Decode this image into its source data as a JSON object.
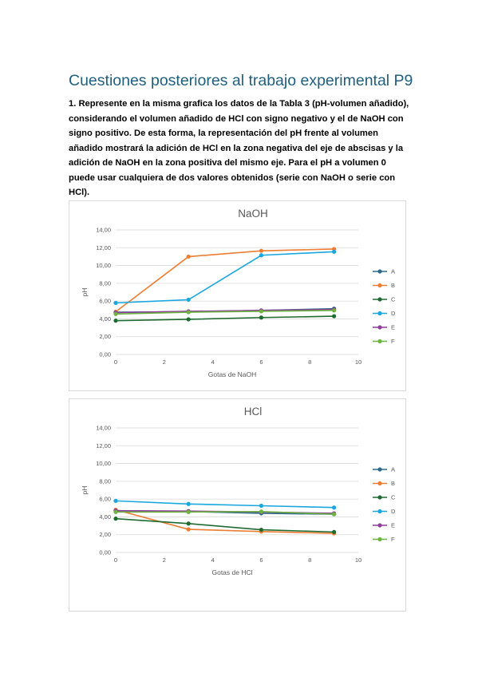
{
  "page": {
    "title": "Cuestiones posteriores al trabajo experimental P9",
    "question": "1. Represente en la misma grafica los datos de la Tabla 3 (pH-volumen añadido), considerando el volumen añadido de HCl con signo negativo y el de NaOH con signo positivo. De esta forma, la representación del pH frente al volumen añadido mostrará la adición de HCl en la zona negativa del eje de abscisas y la adición de NaOH en la zona positiva del mismo eje. Para el pH a volumen 0 puede usar cualquiera de dos valores obtenidos (serie con NaOH o serie con HCl)."
  },
  "chart_data": [
    {
      "type": "line",
      "title": "NaOH",
      "xlabel": "Gotas de NaOH",
      "ylabel": "pH",
      "xlim": [
        0,
        10
      ],
      "ylim": [
        0,
        14
      ],
      "xticks": [
        "0",
        "2",
        "4",
        "6",
        "8",
        "10"
      ],
      "yticks": [
        "0,00",
        "2,00",
        "4,00",
        "6,00",
        "8,00",
        "10,00",
        "12,00",
        "14,00"
      ],
      "grid": true,
      "legend_position": "right",
      "x": [
        0,
        3,
        6,
        9
      ],
      "series": [
        {
          "name": "A",
          "color": "#2e6b8a",
          "values": [
            4.75,
            4.8,
            4.95,
            5.15
          ]
        },
        {
          "name": "B",
          "color": "#ed7d31",
          "values": [
            4.8,
            11.0,
            11.65,
            11.85
          ]
        },
        {
          "name": "C",
          "color": "#1e6b30",
          "values": [
            3.8,
            3.95,
            4.15,
            4.3
          ]
        },
        {
          "name": "D",
          "color": "#1aa7e0",
          "values": [
            5.8,
            6.15,
            11.15,
            11.55
          ]
        },
        {
          "name": "E",
          "color": "#8e3d9b",
          "values": [
            4.7,
            4.85,
            4.95,
            5.05
          ]
        },
        {
          "name": "F",
          "color": "#6cb33f",
          "values": [
            4.55,
            4.75,
            4.85,
            4.95
          ]
        }
      ]
    },
    {
      "type": "line",
      "title": "HCl",
      "xlabel": "Gotas de HCl",
      "ylabel": "pH",
      "xlim": [
        0,
        10
      ],
      "ylim": [
        0,
        14
      ],
      "xticks": [
        "0",
        "2",
        "4",
        "6",
        "8",
        "10"
      ],
      "yticks": [
        "0,00",
        "2,00",
        "4,00",
        "6,00",
        "8,00",
        "10,00",
        "12,00",
        "14,00"
      ],
      "grid": true,
      "legend_position": "right",
      "x": [
        0,
        3,
        6,
        9
      ],
      "series": [
        {
          "name": "A",
          "color": "#2e6b8a",
          "values": [
            4.7,
            4.6,
            4.4,
            4.3
          ]
        },
        {
          "name": "B",
          "color": "#ed7d31",
          "values": [
            4.8,
            2.6,
            2.35,
            2.15
          ]
        },
        {
          "name": "C",
          "color": "#1e6b30",
          "values": [
            3.8,
            3.25,
            2.55,
            2.3
          ]
        },
        {
          "name": "D",
          "color": "#1aa7e0",
          "values": [
            5.8,
            5.45,
            5.25,
            5.05
          ]
        },
        {
          "name": "E",
          "color": "#8e3d9b",
          "values": [
            4.7,
            4.65,
            4.55,
            4.4
          ]
        },
        {
          "name": "F",
          "color": "#6cb33f",
          "values": [
            4.55,
            4.55,
            4.6,
            4.3
          ]
        }
      ]
    }
  ]
}
